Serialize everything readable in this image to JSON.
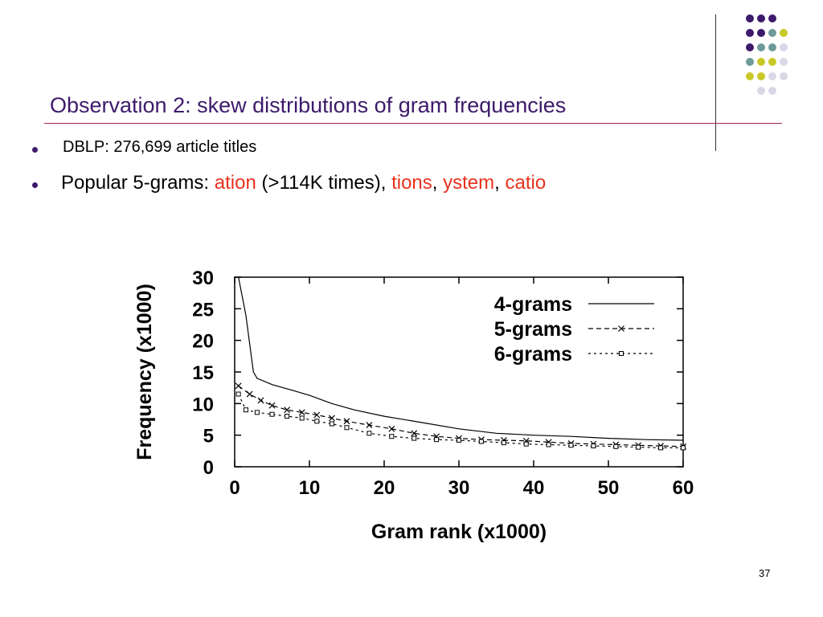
{
  "slide": {
    "title": "Observation 2: skew distributions of gram frequencies",
    "bullet1": "DBLP: 276,699 article titles",
    "bullet2": {
      "prefix": "Popular 5-grams: ",
      "g1": "ation",
      "mid": " (>114K times), ",
      "g2": "tions",
      "sep1": ", ",
      "g3": "ystem",
      "sep2": ", ",
      "g4": "catio"
    },
    "page_number": "37"
  },
  "colors": {
    "title": "#3d1a6b",
    "highlight": "#e8321e",
    "rule": "#a0274a",
    "dot_palette": [
      "#3d1a6b",
      "#6f9a9a",
      "#c8c828",
      "#d8d8e6"
    ]
  },
  "decor_dots": [
    [
      "#3d1a6b",
      "#3d1a6b",
      "#3d1a6b",
      ""
    ],
    [
      "#3d1a6b",
      "#3d1a6b",
      "#6f9a9a",
      "#c8c828"
    ],
    [
      "#3d1a6b",
      "#6f9a9a",
      "#6f9a9a",
      "#d8d8e6"
    ],
    [
      "#6f9a9a",
      "#c8c828",
      "#c8c828",
      "#d8d8e6"
    ],
    [
      "#c8c828",
      "#c8c828",
      "#d8d8e6",
      "#d8d8e6"
    ],
    [
      "",
      "#d8d8e6",
      "#d8d8e6",
      ""
    ]
  ],
  "chart_data": {
    "type": "line",
    "xlabel": "Gram rank (x1000)",
    "ylabel": "Frequency (x1000)",
    "xlim": [
      0,
      60
    ],
    "ylim": [
      0,
      30
    ],
    "xticks": [
      0,
      10,
      20,
      30,
      40,
      50,
      60
    ],
    "yticks": [
      0,
      5,
      10,
      15,
      20,
      25,
      30
    ],
    "legend_position": "top-right",
    "series": [
      {
        "name": "4-grams",
        "marker": "none",
        "dash": "",
        "x": [
          0.5,
          1.5,
          2.5,
          3,
          5,
          8,
          10,
          13,
          16,
          20,
          25,
          30,
          35,
          40,
          45,
          50,
          55,
          60
        ],
        "y": [
          30,
          24,
          15,
          14,
          13,
          12,
          11.3,
          10,
          9,
          8,
          7,
          6,
          5.3,
          5,
          4.8,
          4.5,
          4.3,
          4.2
        ]
      },
      {
        "name": "5-grams",
        "marker": "x",
        "dash": "6,4",
        "x": [
          0.5,
          2,
          3.5,
          5,
          7,
          9,
          11,
          13,
          15,
          18,
          21,
          24,
          27,
          30,
          33,
          36,
          39,
          42,
          45,
          48,
          51,
          54,
          57,
          60
        ],
        "y": [
          12.8,
          11.5,
          10.5,
          9.7,
          9.0,
          8.6,
          8.2,
          7.7,
          7.2,
          6.6,
          6.0,
          5.3,
          4.8,
          4.5,
          4.3,
          4.2,
          4.1,
          3.9,
          3.7,
          3.6,
          3.5,
          3.4,
          3.3,
          3.2
        ]
      },
      {
        "name": "6-grams",
        "marker": "square",
        "dash": "3,4",
        "x": [
          0.5,
          1.5,
          3,
          5,
          7,
          9,
          11,
          13,
          15,
          18,
          21,
          24,
          27,
          30,
          33,
          36,
          39,
          42,
          45,
          48,
          51,
          54,
          57,
          60
        ],
        "y": [
          11.5,
          9.0,
          8.6,
          8.3,
          8.0,
          7.7,
          7.2,
          6.8,
          6.2,
          5.3,
          4.8,
          4.5,
          4.3,
          4.2,
          4.0,
          3.8,
          3.6,
          3.5,
          3.4,
          3.3,
          3.2,
          3.1,
          3.0,
          3.0
        ]
      }
    ]
  }
}
